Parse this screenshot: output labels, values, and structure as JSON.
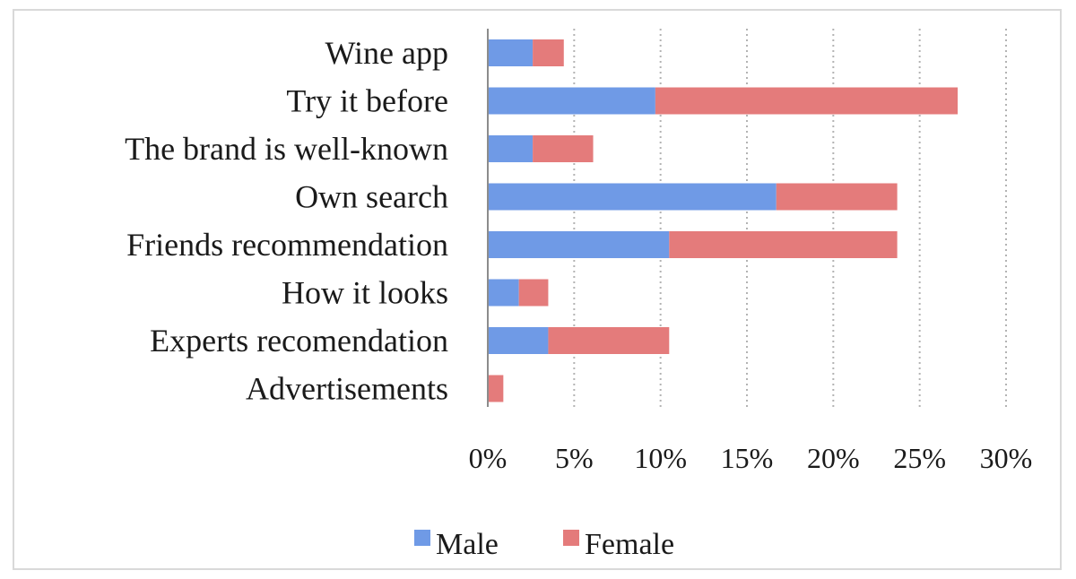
{
  "colors": {
    "male": "#6f9ae6",
    "female": "#e47b7b",
    "grid": "#b3b3b3",
    "axis": "#8c8c8c"
  },
  "chart_data": {
    "type": "bar",
    "orientation": "horizontal",
    "stacked": true,
    "categories": [
      "Wine app",
      "Try it before",
      "The brand is well-known",
      "Own search",
      "Friends recommendation",
      "How it looks",
      "Experts recomendation",
      "Advertisements"
    ],
    "series": [
      {
        "name": "Male",
        "values": [
          2.6,
          9.7,
          2.6,
          16.7,
          10.5,
          1.8,
          3.5,
          0.0
        ]
      },
      {
        "name": "Female",
        "values": [
          1.8,
          17.5,
          3.5,
          7.0,
          13.2,
          1.7,
          7.0,
          0.9
        ]
      }
    ],
    "xlim": [
      0,
      30
    ],
    "xticks": [
      "0%",
      "5%",
      "10%",
      "15%",
      "20%",
      "25%",
      "30%"
    ],
    "xtick_values": [
      0,
      5,
      10,
      15,
      20,
      25,
      30
    ],
    "grid": "vertical-dotted",
    "legend_position": "bottom",
    "title": "",
    "xlabel": "",
    "ylabel": ""
  }
}
